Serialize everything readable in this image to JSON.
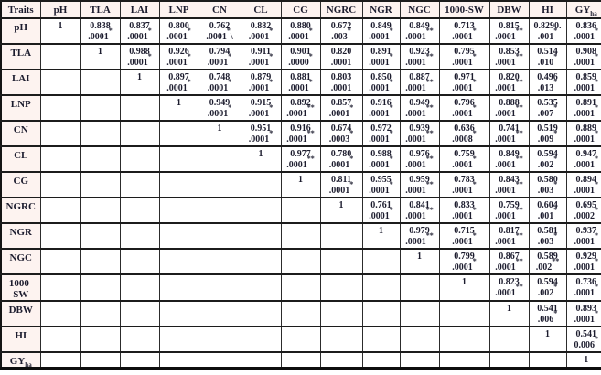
{
  "table": {
    "corner_label": "Traits",
    "columns": [
      {
        "key": "pH",
        "label": "pH"
      },
      {
        "key": "TLA",
        "label": "TLA"
      },
      {
        "key": "LAI",
        "label": "LAI"
      },
      {
        "key": "LNP",
        "label": "LNP"
      },
      {
        "key": "CN",
        "label": "CN"
      },
      {
        "key": "CL",
        "label": "CL"
      },
      {
        "key": "CG",
        "label": "CG"
      },
      {
        "key": "NGRC",
        "label": "NGRC"
      },
      {
        "key": "NGR",
        "label": "NGR"
      },
      {
        "key": "NGC",
        "label": "NGC"
      },
      {
        "key": "1000-SW",
        "label": "1000-SW"
      },
      {
        "key": "DBW",
        "label": "DBW"
      },
      {
        "key": "HI",
        "label": "HI"
      },
      {
        "key": "GY",
        "label": "GY",
        "sub": "ha"
      }
    ],
    "rows": [
      {
        "label": "pH",
        "cells": [
          {
            "v": "1"
          },
          {
            "v": "0.838",
            "p": ".0001*"
          },
          {
            "v": "0.837",
            "p": ".0001*"
          },
          {
            "v": "0.800",
            "p": ".0001*"
          },
          {
            "v": "0.762",
            "p": ".0001*\\"
          },
          {
            "v": "0.882",
            "p": ".0001*"
          },
          {
            "v": "0.880",
            "p": ".0001*"
          },
          {
            "v": "0.672",
            "p": ".003*"
          },
          {
            "v": "0.849",
            "p": ".0001*"
          },
          {
            "v": "0.849",
            "p": ".0001**"
          },
          {
            "v": "0.713",
            "p": ".0001*"
          },
          {
            "v": "0.815",
            "p": ".0001**"
          },
          {
            "v": "0.8290.",
            "p": ".001*"
          },
          {
            "v": "0.836",
            "p": ".0001*"
          }
        ]
      },
      {
        "label": "TLA",
        "cells": [
          null,
          {
            "v": "1"
          },
          {
            "v": "0.988",
            "p": ".0001*"
          },
          {
            "v": "0.926",
            "p": ".0001*"
          },
          {
            "v": "0.794",
            "p": ".0001*"
          },
          {
            "v": "0.911",
            "p": ".0001*"
          },
          {
            "v": "0.901",
            "p": ".0000*"
          },
          {
            "v": "0.820",
            "p": ".0001"
          },
          {
            "v": "0.891",
            "p": ".0001*"
          },
          {
            "v": "0.923",
            "p": ".0001**"
          },
          {
            "v": "0.795",
            "p": ".0001*"
          },
          {
            "v": "0.853",
            "p": ".0001**"
          },
          {
            "v": "0.514",
            "p": ".010*"
          },
          {
            "v": "0.908",
            "p": ".0001*"
          }
        ]
      },
      {
        "label": "LAI",
        "cells": [
          null,
          null,
          {
            "v": "1"
          },
          {
            "v": "0.897",
            "p": ".0001*"
          },
          {
            "v": "0.748",
            "p": ".0001*"
          },
          {
            "v": "0.879",
            "p": ".0001*"
          },
          {
            "v": "0.881",
            "p": ".0001*"
          },
          {
            "v": "0.803",
            "p": ".0001"
          },
          {
            "v": "0.850",
            "p": ".0001*"
          },
          {
            "v": "0.887",
            "p": ".0001**"
          },
          {
            "v": "0.971",
            "p": ".0001*"
          },
          {
            "v": "0.820",
            "p": ".0001**"
          },
          {
            "v": "0.496",
            "p": ".013*"
          },
          {
            "v": "0.859",
            "p": ".0001*"
          }
        ]
      },
      {
        "label": "LNP",
        "cells": [
          null,
          null,
          null,
          {
            "v": "1"
          },
          {
            "v": "0.949",
            "p": ".0001*"
          },
          {
            "v": "0.915",
            "p": ".0001*"
          },
          {
            "v": "0.892",
            "p": ".0001**"
          },
          {
            "v": "0.857",
            "p": ".0001*"
          },
          {
            "v": "0.916",
            "p": ".0001*"
          },
          {
            "v": "0.949",
            "p": ".0001**"
          },
          {
            "v": "0.796",
            "p": ".0001*"
          },
          {
            "v": "0.888",
            "p": ".0001**"
          },
          {
            "v": "0.535",
            "p": ".007*"
          },
          {
            "v": "0.891",
            "p": ".0001*"
          }
        ]
      },
      {
        "label": "CN",
        "cells": [
          null,
          null,
          null,
          null,
          {
            "v": "1"
          },
          {
            "v": "0.951",
            "p": ".0001*"
          },
          {
            "v": "0.916",
            "p": ".0001**"
          },
          {
            "v": "0.674",
            "p": ".0003*"
          },
          {
            "v": "0.972",
            "p": ".0001*"
          },
          {
            "v": "0.939",
            "p": ".0001**"
          },
          {
            "v": "0.636",
            "p": ".0008*"
          },
          {
            "v": "0.741",
            "p": ".0001**"
          },
          {
            "v": "0.519",
            "p": ".009*"
          },
          {
            "v": "0.889",
            "p": ".0001*"
          }
        ]
      },
      {
        "label": "CL",
        "cells": [
          null,
          null,
          null,
          null,
          null,
          {
            "v": "1"
          },
          {
            "v": "0.977",
            "p": ".0001**"
          },
          {
            "v": "0.780",
            "p": ".0001*"
          },
          {
            "v": "0.988",
            "p": ".0001*"
          },
          {
            "v": "0.976",
            "p": ".0001**"
          },
          {
            "v": "0.759",
            "p": ".0001*"
          },
          {
            "v": "0.849",
            "p": ".0001**"
          },
          {
            "v": "0.594",
            "p": ".002*"
          },
          {
            "v": "0.947",
            "p": ".0001*"
          }
        ]
      },
      {
        "label": "CG",
        "cells": [
          null,
          null,
          null,
          null,
          null,
          null,
          {
            "v": "1"
          },
          {
            "v": "0.811",
            "p": ".0001*"
          },
          {
            "v": "0.955",
            "p": ".0001*"
          },
          {
            "v": "0.959",
            "p": ".0001**"
          },
          {
            "v": "0.783",
            "p": ".0001*"
          },
          {
            "v": "0.843",
            "p": ".0001**"
          },
          {
            "v": "0.580",
            "p": ".003*"
          },
          {
            "v": "0.894",
            "p": ".0001*"
          }
        ]
      },
      {
        "label": "NGRC",
        "cells": [
          null,
          null,
          null,
          null,
          null,
          null,
          null,
          {
            "v": "1"
          },
          {
            "v": "0.761",
            "p": ".0001*"
          },
          {
            "v": "0.841",
            "p": ".0001**"
          },
          {
            "v": "0.833",
            "p": ".0001*"
          },
          {
            "v": "0.759",
            "p": ".0001**"
          },
          {
            "v": "0.604",
            "p": ".001*"
          },
          {
            "v": "0.695",
            "p": ".0002*"
          }
        ]
      },
      {
        "label": "NGR",
        "cells": [
          null,
          null,
          null,
          null,
          null,
          null,
          null,
          null,
          {
            "v": "1"
          },
          {
            "v": "0.979",
            "p": ".0001**"
          },
          {
            "v": "0.715",
            "p": ".0001*"
          },
          {
            "v": "0.817",
            "p": ".0001**"
          },
          {
            "v": "0.581",
            "p": ".003*"
          },
          {
            "v": "0.937",
            "p": ".0001*"
          }
        ]
      },
      {
        "label": "NGC",
        "cells": [
          null,
          null,
          null,
          null,
          null,
          null,
          null,
          null,
          null,
          {
            "v": "1"
          },
          {
            "v": "0.799",
            "p": ".0001*"
          },
          {
            "v": "0.867",
            "p": ".0001**"
          },
          {
            "v": "0.589",
            "p": ".002**"
          },
          {
            "v": "0.929",
            "p": ".0001*"
          }
        ]
      },
      {
        "label": "1000-SW",
        "cells": [
          null,
          null,
          null,
          null,
          null,
          null,
          null,
          null,
          null,
          null,
          {
            "v": "1"
          },
          {
            "v": "0.823",
            "p": ".0001**"
          },
          {
            "v": "0.594",
            "p": ".002*"
          },
          {
            "v": "0.736",
            "p": ".0001*"
          }
        ]
      },
      {
        "label": "DBW",
        "cells": [
          null,
          null,
          null,
          null,
          null,
          null,
          null,
          null,
          null,
          null,
          null,
          {
            "v": "1"
          },
          {
            "v": "0.541",
            "p": ".006*"
          },
          {
            "v": "0.893",
            "p": ".0001*"
          }
        ]
      },
      {
        "label": "HI",
        "cells": [
          null,
          null,
          null,
          null,
          null,
          null,
          null,
          null,
          null,
          null,
          null,
          null,
          {
            "v": "1"
          },
          {
            "v": "0.541",
            "p": "0.006*"
          }
        ]
      },
      {
        "label": "GY",
        "sub": "ha",
        "cells": [
          null,
          null,
          null,
          null,
          null,
          null,
          null,
          null,
          null,
          null,
          null,
          null,
          null,
          {
            "v": "1"
          }
        ]
      }
    ]
  }
}
